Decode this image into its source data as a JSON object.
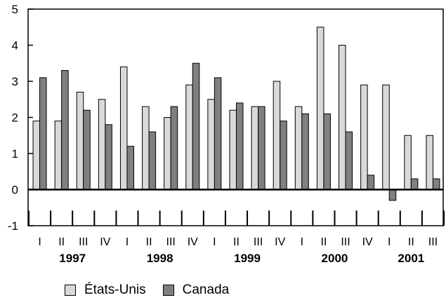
{
  "chart_data": {
    "type": "bar",
    "categories": [
      "I",
      "II",
      "III",
      "IV",
      "I",
      "II",
      "III",
      "IV",
      "I",
      "II",
      "III",
      "IV",
      "I",
      "II",
      "III",
      "IV",
      "I",
      "II",
      "III"
    ],
    "years": [
      "1997",
      "1998",
      "1999",
      "2000",
      "2001"
    ],
    "series": [
      {
        "name": "États-Unis",
        "color": "#d9d9d9",
        "values": [
          1.9,
          1.9,
          2.7,
          2.5,
          3.4,
          2.3,
          2.0,
          2.9,
          2.5,
          2.2,
          2.3,
          3.0,
          2.3,
          4.5,
          4.0,
          2.9,
          2.9,
          1.5,
          1.5
        ]
      },
      {
        "name": "Canada",
        "color": "#808080",
        "values": [
          3.1,
          3.3,
          2.2,
          1.8,
          1.2,
          1.6,
          2.3,
          3.5,
          3.1,
          2.4,
          2.3,
          1.9,
          2.1,
          2.1,
          1.6,
          0.4,
          -0.3,
          0.3,
          0.3
        ]
      }
    ],
    "ylim": [
      -1,
      5
    ],
    "yticks": [
      -1,
      0,
      1,
      2,
      3,
      4,
      5
    ],
    "grid": false,
    "legend_position": "bottom-left"
  }
}
